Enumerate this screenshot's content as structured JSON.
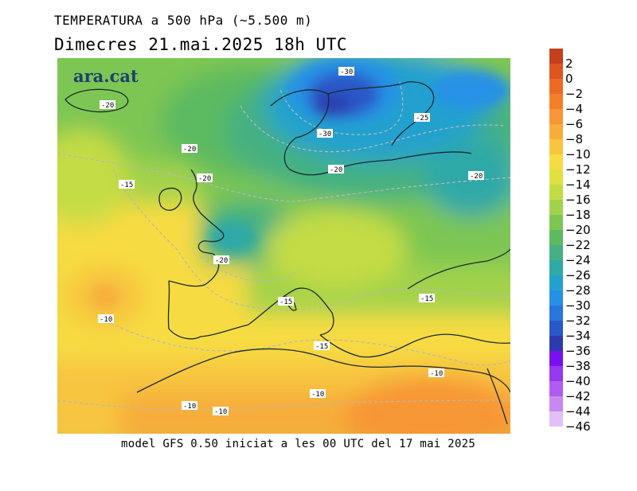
{
  "header": {
    "title": "TEMPERATURA a 500 hPa (~5.500 m)",
    "subtitle": "Dimecres  21.mai.2025 18h UTC"
  },
  "logo": {
    "text": "ara.cat"
  },
  "footer": {
    "text": "model GFS 0.50 iniciat a les 00 UTC del 17 mai 2025"
  },
  "legend": [
    {
      "label": "2",
      "color": "#c6401c"
    },
    {
      "label": "0",
      "color": "#de5520"
    },
    {
      "label": "−2",
      "color": "#ec6a24"
    },
    {
      "label": "−4",
      "color": "#f47f2a"
    },
    {
      "label": "−6",
      "color": "#f79634"
    },
    {
      "label": "−8",
      "color": "#f7ad3b"
    },
    {
      "label": "−10",
      "color": "#f8c540"
    },
    {
      "label": "−12",
      "color": "#f7db42"
    },
    {
      "label": "−14",
      "color": "#e2e040"
    },
    {
      "label": "−16",
      "color": "#c4dc44"
    },
    {
      "label": "−18",
      "color": "#a2d24b"
    },
    {
      "label": "−20",
      "color": "#7dc652"
    },
    {
      "label": "−22",
      "color": "#5cba60"
    },
    {
      "label": "−24",
      "color": "#45b181"
    },
    {
      "label": "−26",
      "color": "#2ea9a8"
    },
    {
      "label": "−28",
      "color": "#22a1cf"
    },
    {
      "label": "−30",
      "color": "#2591e6"
    },
    {
      "label": "−32",
      "color": "#2a76dc"
    },
    {
      "label": "−34",
      "color": "#2a58c8"
    },
    {
      "label": "−36",
      "color": "#2a3cad"
    },
    {
      "label": "−38",
      "color": "#7a10ee"
    },
    {
      "label": "−40",
      "color": "#9638ee"
    },
    {
      "label": "−42",
      "color": "#b05cf0"
    },
    {
      "label": "−44",
      "color": "#c888f2"
    },
    {
      "label": "−46",
      "color": "#e0c0f6"
    }
  ],
  "contour_labels": [
    {
      "text": "-30"
    },
    {
      "text": "-20"
    },
    {
      "text": "-25"
    },
    {
      "text": "-30"
    },
    {
      "text": "-20"
    },
    {
      "text": "-20"
    },
    {
      "text": "-20"
    },
    {
      "text": "-15"
    },
    {
      "text": "-20"
    },
    {
      "text": "-20"
    },
    {
      "text": "-15"
    },
    {
      "text": "-15"
    },
    {
      "text": "-10"
    },
    {
      "text": "-15"
    },
    {
      "text": "-10"
    },
    {
      "text": "-10"
    },
    {
      "text": "-10"
    },
    {
      "text": "-10"
    }
  ]
}
